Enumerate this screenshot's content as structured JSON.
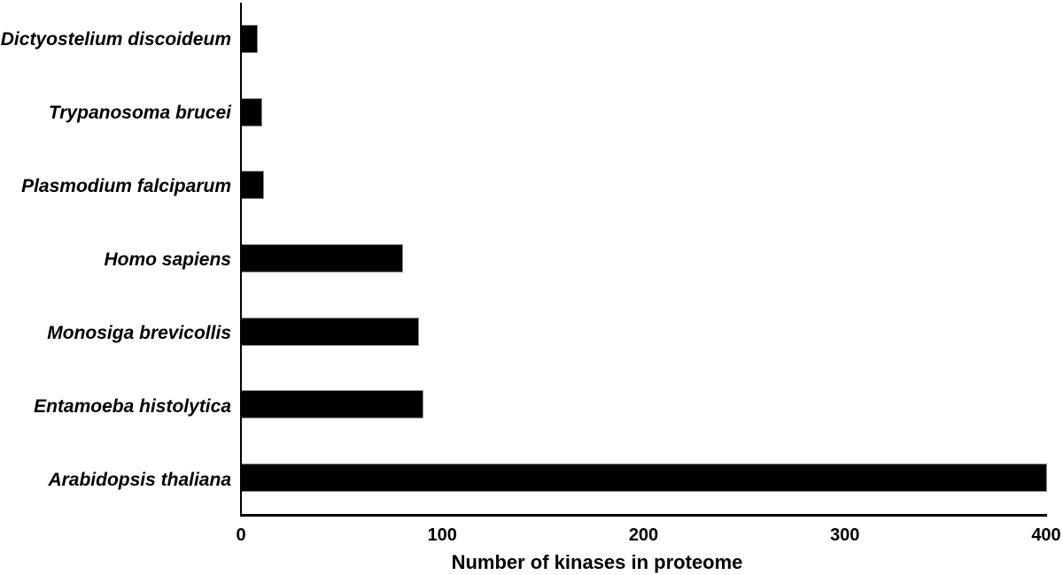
{
  "chart_data": {
    "type": "bar",
    "orientation": "horizontal",
    "title": "",
    "xlabel": "Number of kinases in proteome",
    "ylabel": "",
    "categories": [
      "Dictyostelium discoideum",
      "Trypanosoma brucei",
      "Plasmodium falciparum",
      "Homo sapiens",
      "Monosiga brevicollis",
      "Entamoeba histolytica",
      "Arabidopsis thaliana"
    ],
    "values": [
      8,
      10,
      11,
      80,
      88,
      90,
      400
    ],
    "xlim": [
      0,
      400
    ],
    "xticks": [
      0,
      100,
      200,
      300,
      400
    ],
    "grid": false,
    "legend": null,
    "bar_color": "#000000",
    "axis_color": "#000000",
    "background": "#ffffff"
  }
}
